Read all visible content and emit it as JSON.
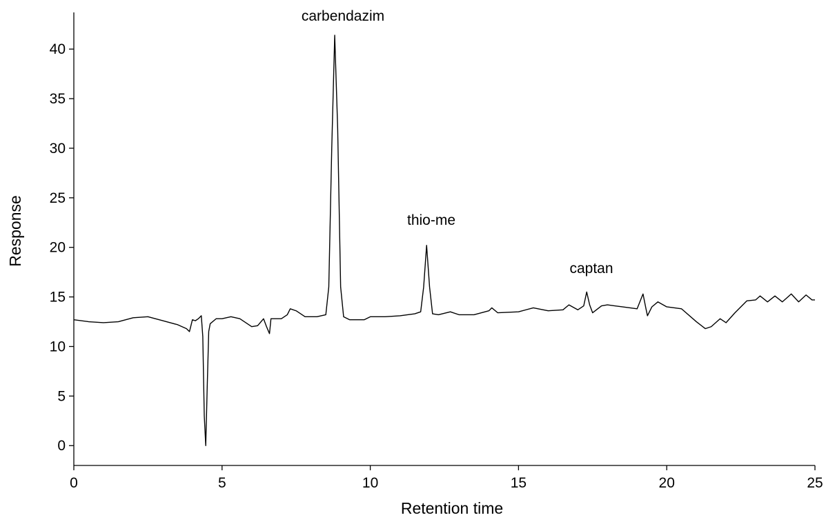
{
  "chart_data": {
    "type": "line",
    "x_label": "Retention time",
    "y_label": "Response",
    "annotations": [
      "carbendazim",
      "thio-me",
      "captan"
    ],
    "xlim": [
      0,
      25
    ],
    "xticks": [
      0,
      5,
      10,
      15,
      20,
      25
    ],
    "ylim": [
      -2,
      43.7
    ],
    "yticks": [
      0,
      5,
      10,
      15,
      20,
      25,
      30,
      35,
      40
    ],
    "grid": false,
    "series": [
      {
        "color": "#000000",
        "x": [
          0,
          0.5,
          1,
          1.5,
          2,
          2.5,
          3,
          3.5,
          3.8,
          3.9,
          4.0,
          4.1,
          4.2,
          4.3,
          4.35,
          4.4,
          4.45,
          4.5,
          4.55,
          4.6,
          4.8,
          5,
          5.3,
          5.6,
          6,
          6.2,
          6.4,
          6.5,
          6.6,
          6.65,
          7,
          7.2,
          7.3,
          7.5,
          7.8,
          8.2,
          8.5,
          8.6,
          8.7,
          8.8,
          8.9,
          9.0,
          9.1,
          9.3,
          9.8,
          10,
          10.5,
          11,
          11.5,
          11.7,
          11.8,
          11.9,
          12.0,
          12.1,
          12.3,
          12.7,
          13,
          13.5,
          14,
          14.1,
          14.3,
          15,
          15.5,
          16,
          16.5,
          16.7,
          17,
          17.2,
          17.3,
          17.4,
          17.5,
          17.8,
          18,
          18.5,
          19,
          19.2,
          19.3,
          19.35,
          19.5,
          19.7,
          20,
          20.5,
          21,
          21.3,
          21.5,
          21.8,
          22,
          22.3,
          22.7,
          23,
          23.15,
          23.4,
          23.65,
          23.9,
          24.2,
          24.45,
          24.7,
          24.9,
          25
        ],
        "values": [
          12.7,
          12.5,
          12.4,
          12.5,
          12.9,
          13.0,
          12.6,
          12.2,
          11.8,
          11.5,
          12.7,
          12.6,
          12.8,
          13.1,
          11.0,
          3,
          0,
          6,
          11.5,
          12.3,
          12.8,
          12.8,
          13.0,
          12.8,
          12.0,
          12.1,
          12.8,
          12.0,
          11.3,
          12.8,
          12.8,
          13.2,
          13.8,
          13.6,
          13.0,
          13.0,
          13.2,
          16,
          30,
          41.4,
          32,
          16,
          13.0,
          12.7,
          12.7,
          13.0,
          13.0,
          13.1,
          13.3,
          13.5,
          16,
          20.2,
          16,
          13.3,
          13.2,
          13.5,
          13.2,
          13.2,
          13.6,
          13.9,
          13.4,
          13.5,
          13.9,
          13.6,
          13.7,
          14.2,
          13.7,
          14.1,
          15.5,
          14.2,
          13.4,
          14.1,
          14.2,
          14.0,
          13.8,
          15.3,
          13.8,
          13.1,
          14.0,
          14.5,
          14.0,
          13.8,
          12.5,
          11.8,
          12.0,
          12.8,
          12.4,
          13.4,
          14.6,
          14.7,
          15.1,
          14.5,
          15.1,
          14.5,
          15.3,
          14.5,
          15.2,
          14.7,
          14.7
        ]
      }
    ]
  }
}
